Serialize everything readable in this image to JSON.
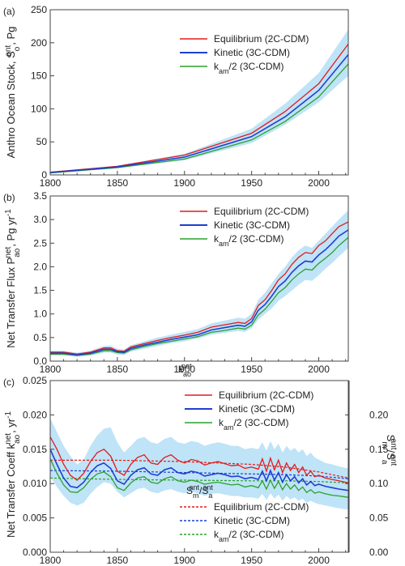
{
  "colors": {
    "equilibrium": "#e31a1c",
    "kinetic": "#1f3fd1",
    "kam": "#2ca02c",
    "band": "#bfe3f7"
  },
  "chart_data": [
    {
      "type": "line",
      "panel_label": "(a)",
      "ylabel": "Anthro Ocean Stock, S",
      "ylabel_sup": "ant",
      "ylabel_sub": "o",
      "ylabel_unit": ", Pg",
      "xlim": [
        1800,
        2022
      ],
      "ylim": [
        0,
        250
      ],
      "xticks": [
        1800,
        1850,
        1900,
        1950,
        2000
      ],
      "yticks": [
        0,
        50,
        100,
        150,
        200,
        250
      ],
      "legend_position": "top-left",
      "x": [
        1800,
        1850,
        1900,
        1950,
        1975,
        2000,
        2022
      ],
      "band": {
        "upper": [
          4,
          14,
          32,
          70,
          108,
          154,
          220
        ],
        "lower": [
          3,
          10,
          22,
          48,
          76,
          110,
          150
        ]
      },
      "series": [
        {
          "name": "Equilibrium (2C-CDM)",
          "color_key": "equilibrium",
          "values": [
            4,
            13,
            30,
            63,
            96,
            138,
            198
          ]
        },
        {
          "name": "Kinetic (3C-CDM)",
          "color_key": "kinetic",
          "values": [
            3.5,
            12,
            27,
            58,
            88,
            128,
            182
          ]
        },
        {
          "name": "k_am/2 (3C-CDM)",
          "color_key": "kam",
          "values": [
            3,
            11,
            24,
            53,
            81,
            118,
            168
          ]
        }
      ],
      "legend": [
        {
          "text": "Equilibrium (2C-CDM)"
        },
        {
          "text": "Kinetic (3C-CDM)"
        },
        {
          "text": "k",
          "sub": "am",
          "rest": "/2 (3C-CDM)"
        }
      ]
    },
    {
      "type": "line",
      "panel_label": "(b)",
      "ylabel": "Net Transfer Flux P",
      "ylabel_sup": "net",
      "ylabel_sub": "ao",
      "ylabel_unit": ", Pg yr",
      "ylabel_unit_sup": "-1",
      "xlim": [
        1800,
        2022
      ],
      "ylim": [
        0,
        3.5
      ],
      "xticks": [
        1800,
        1850,
        1900,
        1950,
        2000
      ],
      "yticks": [
        0.0,
        0.5,
        1.0,
        1.5,
        2.0,
        2.5,
        3.0,
        3.5
      ],
      "ytick_labels": [
        "0.0",
        "0.5",
        "1.0",
        "1.5",
        "2.0",
        "2.5",
        "3.0",
        "3.5"
      ],
      "legend_position": "top-left",
      "x": [
        1800,
        1810,
        1820,
        1830,
        1840,
        1845,
        1850,
        1855,
        1860,
        1870,
        1880,
        1890,
        1900,
        1910,
        1920,
        1930,
        1940,
        1945,
        1950,
        1955,
        1960,
        1965,
        1970,
        1975,
        1980,
        1985,
        1990,
        1995,
        2000,
        2005,
        2010,
        2015,
        2022
      ],
      "band": {
        "upper": [
          0.22,
          0.22,
          0.18,
          0.22,
          0.32,
          0.33,
          0.26,
          0.25,
          0.34,
          0.42,
          0.5,
          0.56,
          0.62,
          0.68,
          0.8,
          0.86,
          0.92,
          0.9,
          1.0,
          1.3,
          1.45,
          1.65,
          1.85,
          2.0,
          2.2,
          2.35,
          2.45,
          2.4,
          2.55,
          2.7,
          2.85,
          3.0,
          3.2
        ],
        "lower": [
          0.12,
          0.12,
          0.09,
          0.12,
          0.18,
          0.18,
          0.14,
          0.13,
          0.2,
          0.26,
          0.32,
          0.38,
          0.42,
          0.48,
          0.56,
          0.6,
          0.64,
          0.62,
          0.7,
          0.88,
          1.0,
          1.12,
          1.28,
          1.38,
          1.5,
          1.62,
          1.72,
          1.7,
          1.82,
          1.96,
          2.08,
          2.22,
          2.4
        ]
      },
      "series": [
        {
          "name": "Equilibrium (2C-CDM)",
          "color_key": "equilibrium",
          "values": [
            0.19,
            0.19,
            0.15,
            0.19,
            0.28,
            0.28,
            0.22,
            0.21,
            0.3,
            0.37,
            0.44,
            0.5,
            0.55,
            0.61,
            0.72,
            0.77,
            0.82,
            0.8,
            0.9,
            1.18,
            1.3,
            1.5,
            1.72,
            1.85,
            2.05,
            2.2,
            2.3,
            2.28,
            2.45,
            2.55,
            2.7,
            2.85,
            2.95
          ]
        },
        {
          "name": "Kinetic (3C-CDM)",
          "color_key": "kinetic",
          "values": [
            0.17,
            0.17,
            0.13,
            0.17,
            0.25,
            0.25,
            0.2,
            0.19,
            0.27,
            0.34,
            0.4,
            0.46,
            0.51,
            0.56,
            0.66,
            0.71,
            0.76,
            0.74,
            0.83,
            1.08,
            1.2,
            1.38,
            1.58,
            1.7,
            1.88,
            2.02,
            2.12,
            2.1,
            2.25,
            2.36,
            2.5,
            2.65,
            2.78
          ]
        },
        {
          "name": "k_am/2 (3C-CDM)",
          "color_key": "kam",
          "values": [
            0.15,
            0.15,
            0.12,
            0.15,
            0.22,
            0.22,
            0.18,
            0.17,
            0.24,
            0.31,
            0.37,
            0.42,
            0.47,
            0.52,
            0.61,
            0.65,
            0.7,
            0.68,
            0.76,
            0.98,
            1.1,
            1.27,
            1.45,
            1.56,
            1.72,
            1.85,
            1.95,
            1.93,
            2.07,
            2.18,
            2.3,
            2.45,
            2.62
          ]
        }
      ],
      "legend": [
        {
          "text": "Equilibrium (2C-CDM)"
        },
        {
          "text": "Kinetic (3C-CDM)"
        },
        {
          "text": "k",
          "sub": "am",
          "rest": "/2 (3C-CDM)"
        }
      ]
    },
    {
      "type": "line",
      "panel_label": "(c)",
      "ylabel": "Net Transfer Coeff k",
      "ylabel_sup": "net",
      "ylabel_sub": "ao",
      "ylabel_unit": ", yr",
      "ylabel_unit_sup": "-1",
      "y2label": "S",
      "y2label_parts": [
        {
          "b": "S",
          "sup": "ant",
          "sub": "m"
        },
        {
          "b": "/S",
          "sup": "ant",
          "sub": "a"
        }
      ],
      "xlim": [
        1800,
        2022
      ],
      "ylim": [
        0,
        0.025
      ],
      "y2lim": [
        0,
        0.25
      ],
      "xticks": [
        1800,
        1850,
        1900,
        1950,
        2000
      ],
      "yticks": [
        0.0,
        0.005,
        0.01,
        0.015,
        0.02,
        0.025
      ],
      "ytick_labels": [
        "0.000",
        "0.005",
        "0.010",
        "0.015",
        "0.020",
        "0.025"
      ],
      "y2ticks": [
        0.0,
        0.05,
        0.1,
        0.15,
        0.2
      ],
      "y2tick_labels": [
        "0.00",
        "0.05",
        "0.10",
        "0.15",
        "0.20"
      ],
      "legend_position": "top-center",
      "legend_title_parts": {
        "b": "k",
        "sup": "net",
        "sub": "ao"
      },
      "legend2_title_parts": [
        {
          "b": "S",
          "sup": "ant",
          "sub": "m"
        },
        {
          "b": "/S",
          "sup": "ant",
          "sub": "a"
        }
      ],
      "x": [
        1800,
        1805,
        1810,
        1815,
        1820,
        1825,
        1830,
        1835,
        1840,
        1845,
        1850,
        1855,
        1860,
        1865,
        1870,
        1875,
        1880,
        1885,
        1890,
        1895,
        1900,
        1905,
        1910,
        1915,
        1920,
        1925,
        1930,
        1935,
        1940,
        1945,
        1950,
        1955,
        1958,
        1961,
        1964,
        1967,
        1970,
        1973,
        1976,
        1979,
        1982,
        1985,
        1988,
        1991,
        1994,
        1997,
        2000,
        2005,
        2010,
        2015,
        2022
      ],
      "band": {
        "upper": [
          0.0195,
          0.0175,
          0.0155,
          0.014,
          0.0128,
          0.0135,
          0.0155,
          0.017,
          0.018,
          0.0182,
          0.016,
          0.0145,
          0.0155,
          0.0165,
          0.0168,
          0.016,
          0.0158,
          0.0165,
          0.0168,
          0.016,
          0.0158,
          0.0162,
          0.016,
          0.0155,
          0.0158,
          0.016,
          0.0158,
          0.0155,
          0.0155,
          0.015,
          0.0152,
          0.015,
          0.016,
          0.0148,
          0.0162,
          0.015,
          0.0158,
          0.0145,
          0.0155,
          0.0148,
          0.0152,
          0.0145,
          0.015,
          0.014,
          0.0145,
          0.0138,
          0.0135,
          0.013,
          0.0128,
          0.0125,
          0.0122
        ]
      },
      "band_lower": [
        0.011,
        0.0095,
        0.0082,
        0.0072,
        0.0068,
        0.0072,
        0.0085,
        0.0095,
        0.0102,
        0.01,
        0.0088,
        0.008,
        0.0086,
        0.0092,
        0.0094,
        0.0088,
        0.0086,
        0.009,
        0.0092,
        0.0088,
        0.0086,
        0.0088,
        0.0086,
        0.0082,
        0.0085,
        0.0086,
        0.0084,
        0.0082,
        0.0082,
        0.008,
        0.008,
        0.0078,
        0.0085,
        0.0076,
        0.0086,
        0.0078,
        0.0084,
        0.0075,
        0.0082,
        0.0077,
        0.008,
        0.0075,
        0.0078,
        0.0072,
        0.0075,
        0.0072,
        0.007,
        0.0068,
        0.0066,
        0.0064,
        0.0062
      ],
      "series": [
        {
          "name": "Equilibrium (2C-CDM)",
          "color_key": "equilibrium",
          "dashed": false,
          "values": [
            0.0168,
            0.015,
            0.0128,
            0.0112,
            0.0105,
            0.0115,
            0.0132,
            0.0145,
            0.015,
            0.014,
            0.0118,
            0.0112,
            0.0128,
            0.0138,
            0.0142,
            0.013,
            0.0128,
            0.0138,
            0.0142,
            0.0134,
            0.013,
            0.0135,
            0.0133,
            0.0127,
            0.013,
            0.0132,
            0.0129,
            0.0126,
            0.0127,
            0.0122,
            0.0124,
            0.0121,
            0.0136,
            0.0118,
            0.0137,
            0.012,
            0.0134,
            0.0116,
            0.013,
            0.0119,
            0.0128,
            0.0116,
            0.0124,
            0.0112,
            0.0118,
            0.011,
            0.0112,
            0.0108,
            0.0106,
            0.0104,
            0.0101
          ]
        },
        {
          "name": "Kinetic (3C-CDM)",
          "color_key": "kinetic",
          "dashed": false,
          "values": [
            0.015,
            0.0128,
            0.0108,
            0.0096,
            0.0094,
            0.0102,
            0.0116,
            0.0126,
            0.013,
            0.0122,
            0.0104,
            0.0099,
            0.0112,
            0.012,
            0.0123,
            0.0114,
            0.0112,
            0.012,
            0.0123,
            0.0116,
            0.0114,
            0.0118,
            0.0116,
            0.0111,
            0.0113,
            0.0115,
            0.0113,
            0.011,
            0.0111,
            0.0107,
            0.0109,
            0.0106,
            0.0118,
            0.0104,
            0.0119,
            0.0105,
            0.0116,
            0.0102,
            0.0113,
            0.0104,
            0.011,
            0.0101,
            0.0107,
            0.0098,
            0.0103,
            0.0097,
            0.0099,
            0.0096,
            0.0094,
            0.0092,
            0.009
          ]
        },
        {
          "name": "k_am/2 (3C-CDM)",
          "color_key": "kam",
          "dashed": false,
          "values": [
            0.0136,
            0.0115,
            0.0098,
            0.0088,
            0.0087,
            0.0094,
            0.0106,
            0.0114,
            0.0117,
            0.011,
            0.0094,
            0.009,
            0.0101,
            0.0108,
            0.011,
            0.0102,
            0.01,
            0.0107,
            0.011,
            0.0104,
            0.0102,
            0.0105,
            0.0103,
            0.0099,
            0.0101,
            0.0102,
            0.01,
            0.0098,
            0.0099,
            0.0095,
            0.0097,
            0.0094,
            0.0104,
            0.0092,
            0.0105,
            0.0093,
            0.0103,
            0.0091,
            0.01,
            0.0092,
            0.0098,
            0.009,
            0.0095,
            0.0087,
            0.0091,
            0.0086,
            0.0088,
            0.0085,
            0.0083,
            0.0082,
            0.008
          ]
        }
      ],
      "ratio_x": [
        1800,
        1850,
        1900,
        1950,
        1975,
        2000,
        2022
      ],
      "ratio_series": [
        {
          "name": "Equilibrium (2C-CDM)",
          "color_key": "equilibrium",
          "values": [
            0.134,
            0.134,
            0.132,
            0.128,
            0.124,
            0.117,
            0.108
          ]
        },
        {
          "name": "Kinetic (3C-CDM)",
          "color_key": "kinetic",
          "values": [
            0.119,
            0.118,
            0.116,
            0.114,
            0.113,
            0.111,
            0.107
          ]
        },
        {
          "name": "k_am/2 (3C-CDM)",
          "color_key": "kam",
          "values": [
            0.108,
            0.106,
            0.105,
            0.104,
            0.104,
            0.103,
            0.101
          ]
        }
      ],
      "legend": [
        {
          "text": "Equilibrium (2C-CDM)"
        },
        {
          "text": "Kinetic (3C-CDM)"
        },
        {
          "text": "k",
          "sub": "am",
          "rest": "/2 (3C-CDM)"
        }
      ],
      "legend2": [
        {
          "text": "Equilibrium (2C-CDM)"
        },
        {
          "text": "Kinetic (3C-CDM)"
        },
        {
          "text": "k",
          "sub": "am",
          "rest": "/2 (3C-CDM)"
        }
      ]
    }
  ]
}
